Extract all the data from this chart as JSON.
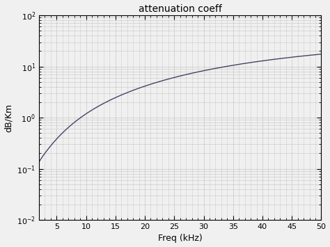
{
  "title": "attenuation coeff",
  "xlabel": "Freq (kHz)",
  "ylabel": "dB/Km",
  "xlim": [
    2,
    50
  ],
  "ylim": [
    0.01,
    100
  ],
  "xticks": [
    5,
    10,
    15,
    20,
    25,
    30,
    35,
    40,
    45,
    50
  ],
  "yticks": [
    0.01,
    0.1,
    1.0,
    10.0,
    100.0
  ],
  "ytick_labels": [
    "10^{-2}",
    "10^{-1}",
    "10^{0}",
    "10^{1}",
    "10^{2}"
  ],
  "line_color": "#444466",
  "background_color": "#f0f0f0",
  "grid_color": "#999999",
  "figsize": [
    4.74,
    3.55
  ],
  "dpi": 100
}
